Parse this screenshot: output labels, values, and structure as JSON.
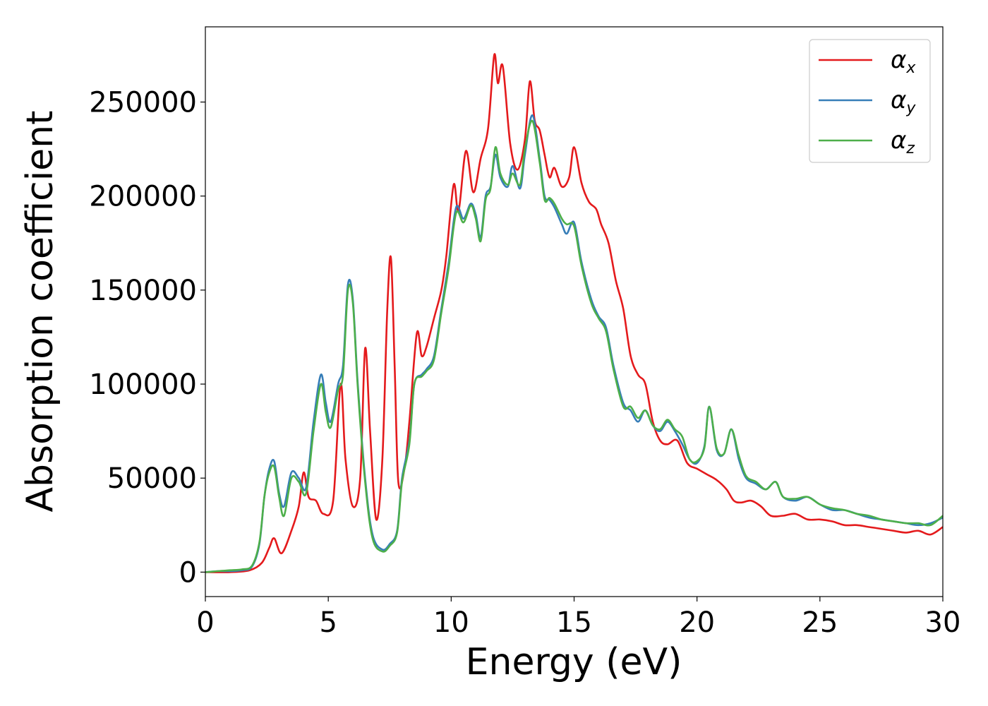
{
  "chart_data": {
    "type": "line",
    "title": "",
    "xlabel": "Energy (eV)",
    "ylabel": "Absorption coefficient",
    "xlim": [
      0,
      30
    ],
    "ylim": [
      -13000,
      290000
    ],
    "xticks": [
      0,
      5,
      10,
      15,
      20,
      25,
      30
    ],
    "xtick_labels": [
      "0",
      "5",
      "10",
      "15",
      "20",
      "25",
      "30"
    ],
    "yticks": [
      0,
      50000,
      100000,
      150000,
      200000,
      250000
    ],
    "ytick_labels": [
      "0",
      "50000",
      "100000",
      "150000",
      "200000",
      "250000"
    ],
    "grid": false,
    "legend_position": "top-right",
    "series": [
      {
        "name": "α_x",
        "symbol": "α",
        "subscript": "x",
        "color": "#e41a1c",
        "points": [
          [
            0,
            0
          ],
          [
            1,
            0
          ],
          [
            1.8,
            1000
          ],
          [
            2.3,
            5000
          ],
          [
            2.6,
            13000
          ],
          [
            2.8,
            18000
          ],
          [
            3.1,
            10000
          ],
          [
            3.5,
            22000
          ],
          [
            3.8,
            35000
          ],
          [
            4.0,
            53000
          ],
          [
            4.2,
            40000
          ],
          [
            4.5,
            38000
          ],
          [
            4.8,
            31000
          ],
          [
            5.2,
            38000
          ],
          [
            5.5,
            100000
          ],
          [
            5.7,
            60000
          ],
          [
            6.0,
            35000
          ],
          [
            6.3,
            50000
          ],
          [
            6.5,
            119000
          ],
          [
            6.7,
            75000
          ],
          [
            6.95,
            28000
          ],
          [
            7.2,
            60000
          ],
          [
            7.4,
            140000
          ],
          [
            7.55,
            167000
          ],
          [
            7.7,
            110000
          ],
          [
            7.85,
            48000
          ],
          [
            8.1,
            55000
          ],
          [
            8.3,
            80000
          ],
          [
            8.6,
            127000
          ],
          [
            8.8,
            115000
          ],
          [
            9.0,
            120000
          ],
          [
            9.3,
            135000
          ],
          [
            9.6,
            150000
          ],
          [
            9.8,
            168000
          ],
          [
            10.1,
            206000
          ],
          [
            10.3,
            192000
          ],
          [
            10.6,
            224000
          ],
          [
            10.9,
            202000
          ],
          [
            11.2,
            220000
          ],
          [
            11.5,
            236000
          ],
          [
            11.75,
            275000
          ],
          [
            11.9,
            260000
          ],
          [
            12.1,
            269000
          ],
          [
            12.4,
            228000
          ],
          [
            12.7,
            214000
          ],
          [
            13.0,
            230000
          ],
          [
            13.2,
            261000
          ],
          [
            13.4,
            240000
          ],
          [
            13.6,
            235000
          ],
          [
            13.8,
            222000
          ],
          [
            14.0,
            210000
          ],
          [
            14.2,
            215000
          ],
          [
            14.5,
            205000
          ],
          [
            14.8,
            210000
          ],
          [
            15.0,
            226000
          ],
          [
            15.3,
            207000
          ],
          [
            15.6,
            197000
          ],
          [
            15.9,
            193000
          ],
          [
            16.1,
            185000
          ],
          [
            16.4,
            175000
          ],
          [
            16.7,
            155000
          ],
          [
            17.0,
            140000
          ],
          [
            17.3,
            115000
          ],
          [
            17.6,
            105000
          ],
          [
            17.9,
            100000
          ],
          [
            18.2,
            80000
          ],
          [
            18.5,
            70000
          ],
          [
            18.8,
            68000
          ],
          [
            19.2,
            70000
          ],
          [
            19.6,
            58000
          ],
          [
            20.0,
            55000
          ],
          [
            20.4,
            52000
          ],
          [
            20.8,
            49000
          ],
          [
            21.2,
            44000
          ],
          [
            21.5,
            38000
          ],
          [
            21.8,
            37000
          ],
          [
            22.2,
            38000
          ],
          [
            22.6,
            35000
          ],
          [
            23.0,
            30000
          ],
          [
            23.5,
            30000
          ],
          [
            24.0,
            31000
          ],
          [
            24.5,
            28000
          ],
          [
            25.0,
            28000
          ],
          [
            25.5,
            27000
          ],
          [
            26.0,
            25000
          ],
          [
            26.5,
            25000
          ],
          [
            27.0,
            24000
          ],
          [
            27.5,
            23000
          ],
          [
            28.0,
            22000
          ],
          [
            28.5,
            21000
          ],
          [
            29.0,
            22000
          ],
          [
            29.5,
            20000
          ],
          [
            30.0,
            24000
          ]
        ]
      },
      {
        "name": "α_y",
        "symbol": "α",
        "subscript": "y",
        "color": "#377eb8",
        "points": [
          [
            0,
            0
          ],
          [
            0.5,
            500
          ],
          [
            1.0,
            500
          ],
          [
            1.5,
            1000
          ],
          [
            1.9,
            3000
          ],
          [
            2.2,
            15000
          ],
          [
            2.4,
            40000
          ],
          [
            2.6,
            55000
          ],
          [
            2.8,
            59000
          ],
          [
            3.0,
            42000
          ],
          [
            3.2,
            35000
          ],
          [
            3.5,
            53000
          ],
          [
            3.8,
            50000
          ],
          [
            4.1,
            45000
          ],
          [
            4.4,
            80000
          ],
          [
            4.7,
            105000
          ],
          [
            4.9,
            90000
          ],
          [
            5.1,
            80000
          ],
          [
            5.4,
            100000
          ],
          [
            5.6,
            110000
          ],
          [
            5.8,
            153000
          ],
          [
            6.0,
            145000
          ],
          [
            6.2,
            100000
          ],
          [
            6.5,
            50000
          ],
          [
            6.8,
            20000
          ],
          [
            7.2,
            12000
          ],
          [
            7.5,
            15000
          ],
          [
            7.8,
            22000
          ],
          [
            8.0,
            50000
          ],
          [
            8.3,
            70000
          ],
          [
            8.5,
            100000
          ],
          [
            8.8,
            105000
          ],
          [
            9.0,
            108000
          ],
          [
            9.3,
            115000
          ],
          [
            9.6,
            140000
          ],
          [
            9.9,
            165000
          ],
          [
            10.2,
            194000
          ],
          [
            10.5,
            188000
          ],
          [
            10.8,
            196000
          ],
          [
            11.0,
            190000
          ],
          [
            11.2,
            178000
          ],
          [
            11.4,
            200000
          ],
          [
            11.6,
            205000
          ],
          [
            11.8,
            222000
          ],
          [
            12.0,
            210000
          ],
          [
            12.3,
            205000
          ],
          [
            12.5,
            216000
          ],
          [
            12.8,
            204000
          ],
          [
            13.0,
            222000
          ],
          [
            13.3,
            243000
          ],
          [
            13.6,
            220000
          ],
          [
            13.8,
            200000
          ],
          [
            14.0,
            198000
          ],
          [
            14.2,
            194000
          ],
          [
            14.5,
            185000
          ],
          [
            14.7,
            180000
          ],
          [
            15.0,
            186000
          ],
          [
            15.3,
            165000
          ],
          [
            15.7,
            145000
          ],
          [
            16.0,
            136000
          ],
          [
            16.3,
            130000
          ],
          [
            16.6,
            110000
          ],
          [
            17.0,
            90000
          ],
          [
            17.3,
            86000
          ],
          [
            17.6,
            80000
          ],
          [
            17.9,
            86000
          ],
          [
            18.2,
            78000
          ],
          [
            18.5,
            75000
          ],
          [
            18.8,
            80000
          ],
          [
            19.1,
            75000
          ],
          [
            19.4,
            68000
          ],
          [
            19.7,
            60000
          ],
          [
            20.0,
            58000
          ],
          [
            20.3,
            67000
          ],
          [
            20.5,
            88000
          ],
          [
            20.8,
            65000
          ],
          [
            21.1,
            63000
          ],
          [
            21.4,
            76000
          ],
          [
            21.7,
            60000
          ],
          [
            22.0,
            50000
          ],
          [
            22.4,
            47000
          ],
          [
            22.8,
            44000
          ],
          [
            23.2,
            48000
          ],
          [
            23.5,
            40000
          ],
          [
            24.0,
            38000
          ],
          [
            24.5,
            40000
          ],
          [
            25.0,
            36000
          ],
          [
            25.5,
            33000
          ],
          [
            26.0,
            33000
          ],
          [
            26.5,
            31000
          ],
          [
            27.0,
            29000
          ],
          [
            27.5,
            28000
          ],
          [
            28.0,
            27000
          ],
          [
            28.5,
            26000
          ],
          [
            29.0,
            25000
          ],
          [
            29.5,
            26000
          ],
          [
            30.0,
            29000
          ]
        ]
      },
      {
        "name": "α_z",
        "symbol": "α",
        "subscript": "z",
        "color": "#4daf4a",
        "points": [
          [
            0,
            0
          ],
          [
            0.5,
            500
          ],
          [
            1.0,
            1000
          ],
          [
            1.5,
            1500
          ],
          [
            1.9,
            3500
          ],
          [
            2.2,
            16000
          ],
          [
            2.4,
            40000
          ],
          [
            2.6,
            53000
          ],
          [
            2.8,
            56000
          ],
          [
            3.0,
            40000
          ],
          [
            3.2,
            30000
          ],
          [
            3.5,
            50000
          ],
          [
            3.8,
            48000
          ],
          [
            4.1,
            42000
          ],
          [
            4.4,
            75000
          ],
          [
            4.7,
            100000
          ],
          [
            4.9,
            85000
          ],
          [
            5.1,
            77000
          ],
          [
            5.4,
            97000
          ],
          [
            5.6,
            105000
          ],
          [
            5.8,
            150000
          ],
          [
            6.0,
            143000
          ],
          [
            6.2,
            98000
          ],
          [
            6.5,
            48000
          ],
          [
            6.8,
            18000
          ],
          [
            7.2,
            11000
          ],
          [
            7.5,
            14000
          ],
          [
            7.8,
            21000
          ],
          [
            8.0,
            48000
          ],
          [
            8.3,
            68000
          ],
          [
            8.5,
            100000
          ],
          [
            8.8,
            104000
          ],
          [
            9.0,
            107000
          ],
          [
            9.3,
            113000
          ],
          [
            9.6,
            138000
          ],
          [
            9.9,
            162000
          ],
          [
            10.2,
            191000
          ],
          [
            10.5,
            186000
          ],
          [
            10.8,
            195000
          ],
          [
            11.0,
            188000
          ],
          [
            11.2,
            176000
          ],
          [
            11.4,
            198000
          ],
          [
            11.6,
            204000
          ],
          [
            11.8,
            226000
          ],
          [
            12.0,
            212000
          ],
          [
            12.3,
            206000
          ],
          [
            12.5,
            212000
          ],
          [
            12.8,
            206000
          ],
          [
            13.0,
            225000
          ],
          [
            13.3,
            240000
          ],
          [
            13.6,
            218000
          ],
          [
            13.8,
            198000
          ],
          [
            14.0,
            199000
          ],
          [
            14.2,
            196000
          ],
          [
            14.5,
            188000
          ],
          [
            14.7,
            185000
          ],
          [
            15.0,
            184000
          ],
          [
            15.3,
            163000
          ],
          [
            15.7,
            143000
          ],
          [
            16.0,
            135000
          ],
          [
            16.3,
            128000
          ],
          [
            16.6,
            108000
          ],
          [
            17.0,
            88000
          ],
          [
            17.3,
            88000
          ],
          [
            17.6,
            82000
          ],
          [
            17.9,
            86000
          ],
          [
            18.2,
            78000
          ],
          [
            18.5,
            76000
          ],
          [
            18.8,
            81000
          ],
          [
            19.1,
            76000
          ],
          [
            19.4,
            72000
          ],
          [
            19.7,
            60000
          ],
          [
            20.0,
            59000
          ],
          [
            20.3,
            66000
          ],
          [
            20.5,
            88000
          ],
          [
            20.8,
            66000
          ],
          [
            21.1,
            63000
          ],
          [
            21.4,
            76000
          ],
          [
            21.7,
            62000
          ],
          [
            22.0,
            51000
          ],
          [
            22.4,
            48000
          ],
          [
            22.8,
            44000
          ],
          [
            23.2,
            48000
          ],
          [
            23.5,
            40000
          ],
          [
            24.0,
            39000
          ],
          [
            24.5,
            40000
          ],
          [
            25.0,
            36000
          ],
          [
            25.5,
            34000
          ],
          [
            26.0,
            33000
          ],
          [
            26.5,
            31000
          ],
          [
            27.0,
            30000
          ],
          [
            27.5,
            28000
          ],
          [
            28.0,
            27000
          ],
          [
            28.5,
            26000
          ],
          [
            29.0,
            26000
          ],
          [
            29.5,
            25000
          ],
          [
            30.0,
            30000
          ]
        ]
      }
    ]
  }
}
